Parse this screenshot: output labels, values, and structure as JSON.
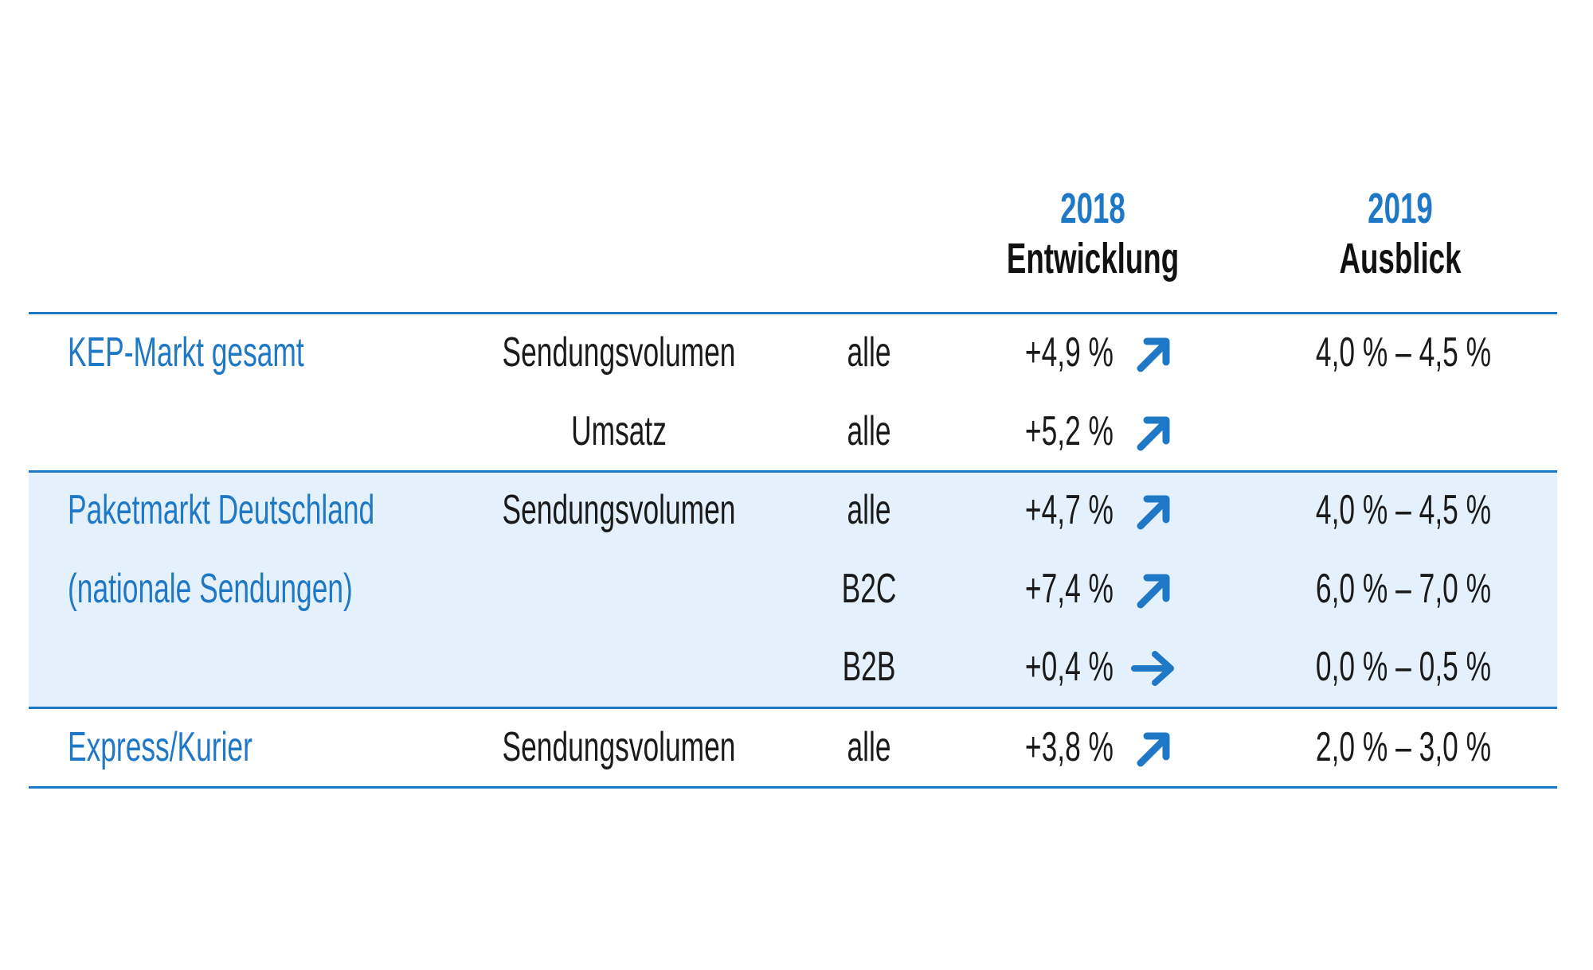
{
  "header": {
    "col1_year": "2018",
    "col1_label": "Entwicklung",
    "col2_year": "2019",
    "col2_label": "Ausblick"
  },
  "colors": {
    "accent": "#1f78c6",
    "band": "#e4f0fb"
  },
  "rows": [
    {
      "segment": "KEP-Markt gesamt",
      "metric": "Sendungsvolumen",
      "type": "alle",
      "value_2018": "+4,9 %",
      "trend": "up-right-arrow-icon",
      "outlook_2019": "4,0 % – 4,5 %"
    },
    {
      "segment": "",
      "metric": "Umsatz",
      "type": "alle",
      "value_2018": "+5,2 %",
      "trend": "up-right-arrow-icon",
      "outlook_2019": ""
    },
    {
      "segment": "Paketmarkt Deutschland",
      "metric": "Sendungsvolumen",
      "type": "alle",
      "value_2018": "+4,7 %",
      "trend": "up-right-arrow-icon",
      "outlook_2019": "4,0 % – 4,5 %"
    },
    {
      "segment": "(nationale Sendungen)",
      "metric": "",
      "type": "B2C",
      "value_2018": "+7,4 %",
      "trend": "up-right-arrow-icon",
      "outlook_2019": "6,0 % – 7,0 %"
    },
    {
      "segment": "",
      "metric": "",
      "type": "B2B",
      "value_2018": "+0,4 %",
      "trend": "right-arrow-icon",
      "outlook_2019": "0,0 % – 0,5 %"
    },
    {
      "segment": "Express/Kurier",
      "metric": "Sendungsvolumen",
      "type": "alle",
      "value_2018": "+3,8 %",
      "trend": "up-right-arrow-icon",
      "outlook_2019": "2,0 % – 3,0 %"
    }
  ]
}
